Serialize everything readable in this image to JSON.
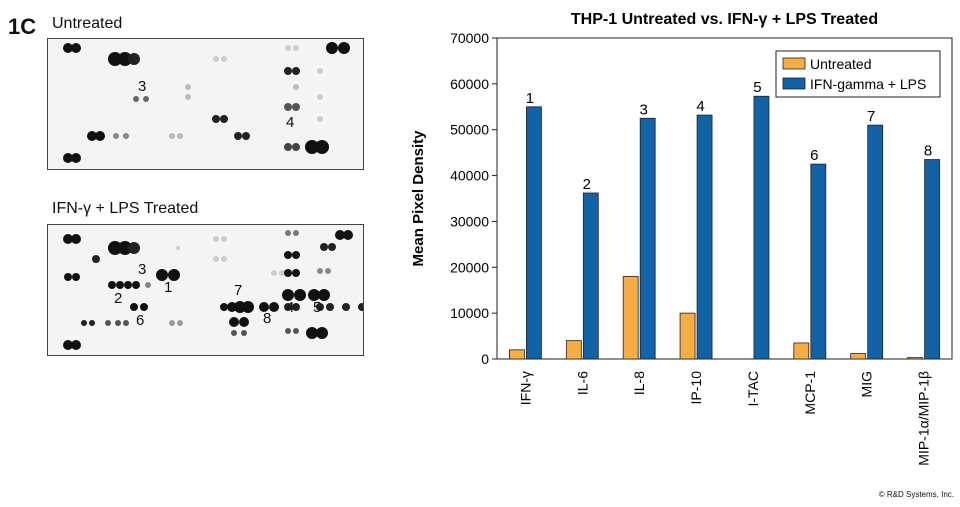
{
  "panel_label": "1C",
  "blots": [
    {
      "title": "Untreated",
      "labels": [
        {
          "text": "3",
          "x": 90,
          "y": 40
        },
        {
          "text": "4",
          "x": 238,
          "y": 76
        }
      ]
    },
    {
      "title": "IFN-γ + LPS Treated",
      "labels": [
        {
          "text": "3",
          "x": 90,
          "y": 37
        },
        {
          "text": "1",
          "x": 116,
          "y": 55
        },
        {
          "text": "2",
          "x": 66,
          "y": 66
        },
        {
          "text": "6",
          "x": 88,
          "y": 88
        },
        {
          "text": "7",
          "x": 186,
          "y": 58
        },
        {
          "text": "8",
          "x": 215,
          "y": 86
        },
        {
          "text": "4",
          "x": 238,
          "y": 75
        },
        {
          "text": "5",
          "x": 265,
          "y": 75
        }
      ]
    }
  ],
  "copyright": "© R&D Systems, Inc.",
  "chart_data": {
    "type": "bar",
    "title": "THP-1 Untreated vs. IFN-γ + LPS Treated",
    "ylabel": "Mean Pixel Density",
    "xlabel": "",
    "ylim": [
      0,
      70000
    ],
    "yticks": [
      0,
      10000,
      20000,
      30000,
      40000,
      50000,
      60000,
      70000
    ],
    "categories": [
      "IFN-γ",
      "IL-6",
      "IL-8",
      "IP-10",
      "I-TAC",
      "MCP-1",
      "MIG",
      "MIP-1α/MIP-1β"
    ],
    "bar_labels": [
      "1",
      "2",
      "3",
      "4",
      "5",
      "6",
      "7",
      "8"
    ],
    "series": [
      {
        "name": "Untreated",
        "color": "#f5ad44",
        "values": [
          2000,
          4000,
          18000,
          10000,
          0,
          3500,
          1200,
          300
        ]
      },
      {
        "name": "IFN-gamma + LPS",
        "color": "#1262a8",
        "values": [
          55000,
          36200,
          52500,
          53200,
          57300,
          42500,
          51000,
          43500
        ]
      }
    ],
    "legend_position": "top-right",
    "grid": false
  }
}
